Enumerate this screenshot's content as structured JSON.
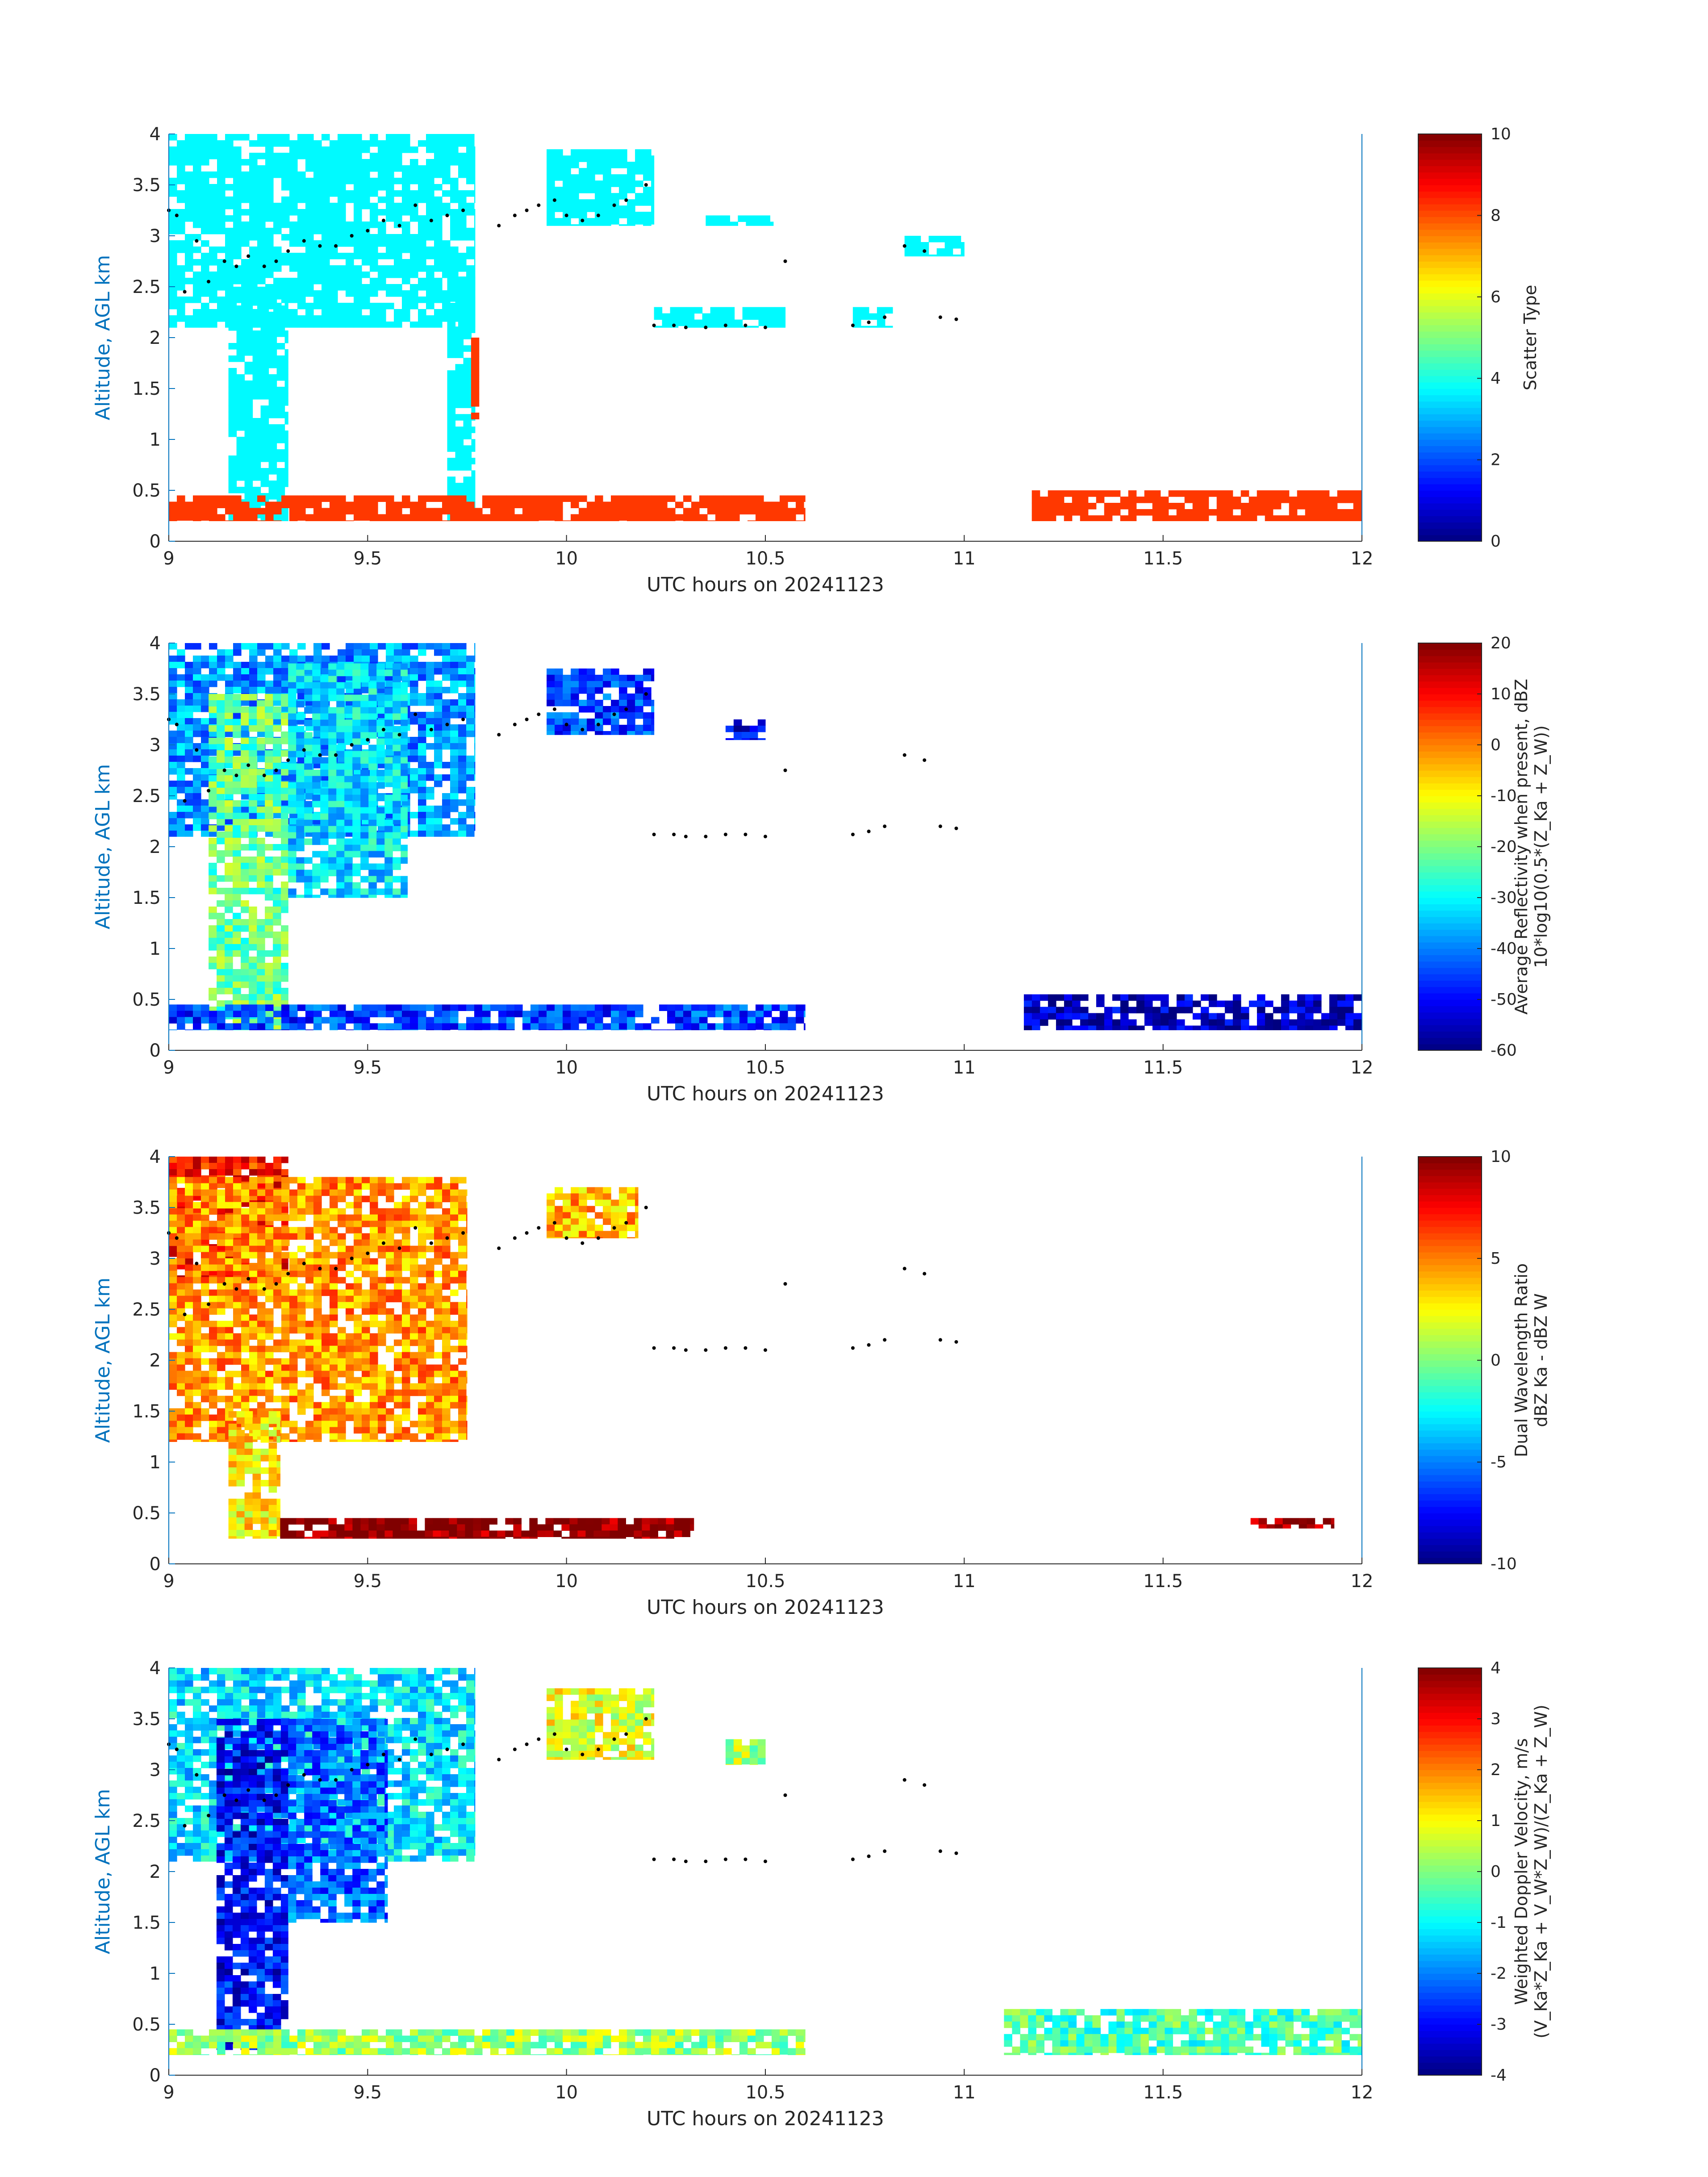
{
  "colors": {
    "axis": "#0072bd",
    "text": "#262626",
    "marker": "#000000"
  },
  "chart_data": [
    {
      "type": "heatmap",
      "xlabel": "UTC hours on 20241123",
      "ylabel": "Altitude, AGL km",
      "xlim": [
        9,
        12
      ],
      "ylim": [
        0,
        4
      ],
      "xticks": [
        "9",
        "9.5",
        "10",
        "10.5",
        "11",
        "11.5",
        "12"
      ],
      "yticks": [
        "0",
        "0.5",
        "1",
        "1.5",
        "2",
        "2.5",
        "3",
        "3.5",
        "4"
      ],
      "colorbar": {
        "label": [
          "Scatter Type"
        ],
        "range": [
          0,
          10
        ],
        "ticks": [
          "0",
          "2",
          "4",
          "6",
          "8",
          "10"
        ],
        "colormap": "jet"
      },
      "regions": [
        {
          "x": [
            9.0,
            9.77
          ],
          "y": [
            2.1,
            4.0
          ],
          "value": 3.7
        },
        {
          "x": [
            9.15,
            9.3
          ],
          "y": [
            0.2,
            2.5
          ],
          "value": 3.7
        },
        {
          "x": [
            9.7,
            9.77
          ],
          "y": [
            0.2,
            2.6
          ],
          "value": 3.7
        },
        {
          "x": [
            9.95,
            10.22
          ],
          "y": [
            3.1,
            3.85
          ],
          "value": 3.7
        },
        {
          "x": [
            10.22,
            10.55
          ],
          "y": [
            2.1,
            2.3
          ],
          "value": 3.7
        },
        {
          "x": [
            10.35,
            10.52
          ],
          "y": [
            3.1,
            3.2
          ],
          "value": 3.7
        },
        {
          "x": [
            10.72,
            10.82
          ],
          "y": [
            2.1,
            2.3
          ],
          "value": 3.7
        },
        {
          "x": [
            10.85,
            11.0
          ],
          "y": [
            2.8,
            3.0
          ],
          "value": 3.7
        },
        {
          "x": [
            9.0,
            10.6
          ],
          "y": [
            0.2,
            0.45
          ],
          "value": 8.2
        },
        {
          "x": [
            11.17,
            12.0
          ],
          "y": [
            0.2,
            0.5
          ],
          "value": 8.2
        },
        {
          "x": [
            9.76,
            9.78
          ],
          "y": [
            1.2,
            2.0
          ],
          "value": 8.2
        }
      ]
    },
    {
      "type": "heatmap",
      "xlabel": "UTC hours on 20241123",
      "ylabel": "Altitude, AGL km",
      "xlim": [
        9,
        12
      ],
      "ylim": [
        0,
        4
      ],
      "xticks": [
        "9",
        "9.5",
        "10",
        "10.5",
        "11",
        "11.5",
        "12"
      ],
      "yticks": [
        "0",
        "0.5",
        "1",
        "1.5",
        "2",
        "2.5",
        "3",
        "3.5",
        "4"
      ],
      "colorbar": {
        "label": [
          "Average Reflectivity when present, dBZ",
          "10*log10(0.5*(Z_Ka + Z_W))"
        ],
        "range": [
          -60,
          20
        ],
        "ticks": [
          "-60",
          "-50",
          "-40",
          "-30",
          "-20",
          "-10",
          "0",
          "10",
          "20"
        ],
        "colormap": "jet"
      },
      "regions": [
        {
          "x": [
            9.0,
            9.77
          ],
          "y": [
            2.1,
            4.0
          ],
          "value": -38
        },
        {
          "x": [
            9.1,
            9.3
          ],
          "y": [
            0.2,
            3.5
          ],
          "value": -22
        },
        {
          "x": [
            9.3,
            9.6
          ],
          "y": [
            1.5,
            3.8
          ],
          "value": -32
        },
        {
          "x": [
            9.95,
            10.22
          ],
          "y": [
            3.1,
            3.75
          ],
          "value": -45
        },
        {
          "x": [
            10.4,
            10.5
          ],
          "y": [
            3.05,
            3.25
          ],
          "value": -52
        },
        {
          "x": [
            9.0,
            10.6
          ],
          "y": [
            0.2,
            0.45
          ],
          "value": -45
        },
        {
          "x": [
            11.15,
            12.0
          ],
          "y": [
            0.2,
            0.55
          ],
          "value": -55
        }
      ]
    },
    {
      "type": "heatmap",
      "xlabel": "UTC hours on 20241123",
      "ylabel": "Altitude, AGL km",
      "xlim": [
        9,
        12
      ],
      "ylim": [
        0,
        4
      ],
      "xticks": [
        "9",
        "9.5",
        "10",
        "10.5",
        "11",
        "11.5",
        "12"
      ],
      "yticks": [
        "0",
        "0.5",
        "1",
        "1.5",
        "2",
        "2.5",
        "3",
        "3.5",
        "4"
      ],
      "colorbar": {
        "label": [
          "Dual Wavelength Ratio",
          "dBZ Ka - dBZ W"
        ],
        "range": [
          -10,
          10
        ],
        "ticks": [
          "-10",
          "-5",
          "0",
          "5",
          "10"
        ],
        "colormap": "jet"
      },
      "regions": [
        {
          "x": [
            9.0,
            9.3
          ],
          "y": [
            2.8,
            4.0
          ],
          "value": 7
        },
        {
          "x": [
            9.0,
            9.75
          ],
          "y": [
            1.2,
            3.8
          ],
          "value": 4.5
        },
        {
          "x": [
            9.15,
            9.28
          ],
          "y": [
            0.25,
            1.5
          ],
          "value": 3
        },
        {
          "x": [
            9.95,
            10.18
          ],
          "y": [
            3.2,
            3.7
          ],
          "value": 4
        },
        {
          "x": [
            9.28,
            10.32
          ],
          "y": [
            0.25,
            0.45
          ],
          "value": 10
        },
        {
          "x": [
            11.72,
            11.93
          ],
          "y": [
            0.35,
            0.45
          ],
          "value": 9.5
        }
      ]
    },
    {
      "type": "heatmap",
      "xlabel": "UTC hours on 20241123",
      "ylabel": "Altitude, AGL km",
      "xlim": [
        9,
        12
      ],
      "ylim": [
        0,
        4
      ],
      "xticks": [
        "9",
        "9.5",
        "10",
        "10.5",
        "11",
        "11.5",
        "12"
      ],
      "yticks": [
        "0",
        "0.5",
        "1",
        "1.5",
        "2",
        "2.5",
        "3",
        "3.5",
        "4"
      ],
      "colorbar": {
        "label": [
          "Weighted Doppler Velocity, m/s",
          "(V_Ka*Z_Ka + V_W*Z_W)/(Z_Ka + Z_W)"
        ],
        "range": [
          -4,
          4
        ],
        "ticks": [
          "-4",
          "-3",
          "-2",
          "-1",
          "0",
          "1",
          "2",
          "3",
          "4"
        ],
        "colormap": "jet"
      },
      "regions": [
        {
          "x": [
            9.0,
            9.77
          ],
          "y": [
            2.1,
            4.0
          ],
          "value": -1.2
        },
        {
          "x": [
            9.12,
            9.3
          ],
          "y": [
            0.25,
            3.5
          ],
          "value": -3.0
        },
        {
          "x": [
            9.3,
            9.55
          ],
          "y": [
            1.5,
            3.5
          ],
          "value": -2.2
        },
        {
          "x": [
            9.95,
            10.22
          ],
          "y": [
            3.1,
            3.8
          ],
          "value": 0.8
        },
        {
          "x": [
            10.4,
            10.5
          ],
          "y": [
            3.05,
            3.3
          ],
          "value": 0.4
        },
        {
          "x": [
            9.0,
            10.6
          ],
          "y": [
            0.2,
            0.45
          ],
          "value": 0.2
        },
        {
          "x": [
            11.1,
            12.0
          ],
          "y": [
            0.2,
            0.65
          ],
          "value": -0.4
        }
      ]
    }
  ],
  "cloud_top_markers": {
    "x": [
      9.0,
      9.02,
      9.04,
      9.07,
      9.1,
      9.14,
      9.17,
      9.2,
      9.24,
      9.27,
      9.3,
      9.34,
      9.38,
      9.42,
      9.46,
      9.5,
      9.54,
      9.58,
      9.62,
      9.66,
      9.7,
      9.74,
      9.83,
      9.87,
      9.9,
      9.93,
      9.97,
      10.0,
      10.04,
      10.08,
      10.12,
      10.15,
      10.2,
      10.22,
      10.27,
      10.3,
      10.35,
      10.4,
      10.45,
      10.5,
      10.55,
      10.72,
      10.76,
      10.8,
      10.85,
      10.9,
      10.94,
      10.98
    ],
    "y": [
      3.25,
      3.2,
      2.45,
      2.95,
      2.55,
      2.75,
      2.7,
      2.8,
      2.7,
      2.75,
      2.85,
      2.95,
      2.9,
      2.9,
      3.0,
      3.05,
      3.15,
      3.1,
      3.3,
      3.15,
      3.2,
      3.25,
      3.1,
      3.2,
      3.25,
      3.3,
      3.35,
      3.2,
      3.15,
      3.2,
      3.3,
      3.35,
      3.5,
      2.12,
      2.12,
      2.1,
      2.1,
      2.12,
      2.12,
      2.1,
      2.75,
      2.12,
      2.15,
      2.2,
      2.9,
      2.85,
      2.2,
      2.18
    ]
  }
}
